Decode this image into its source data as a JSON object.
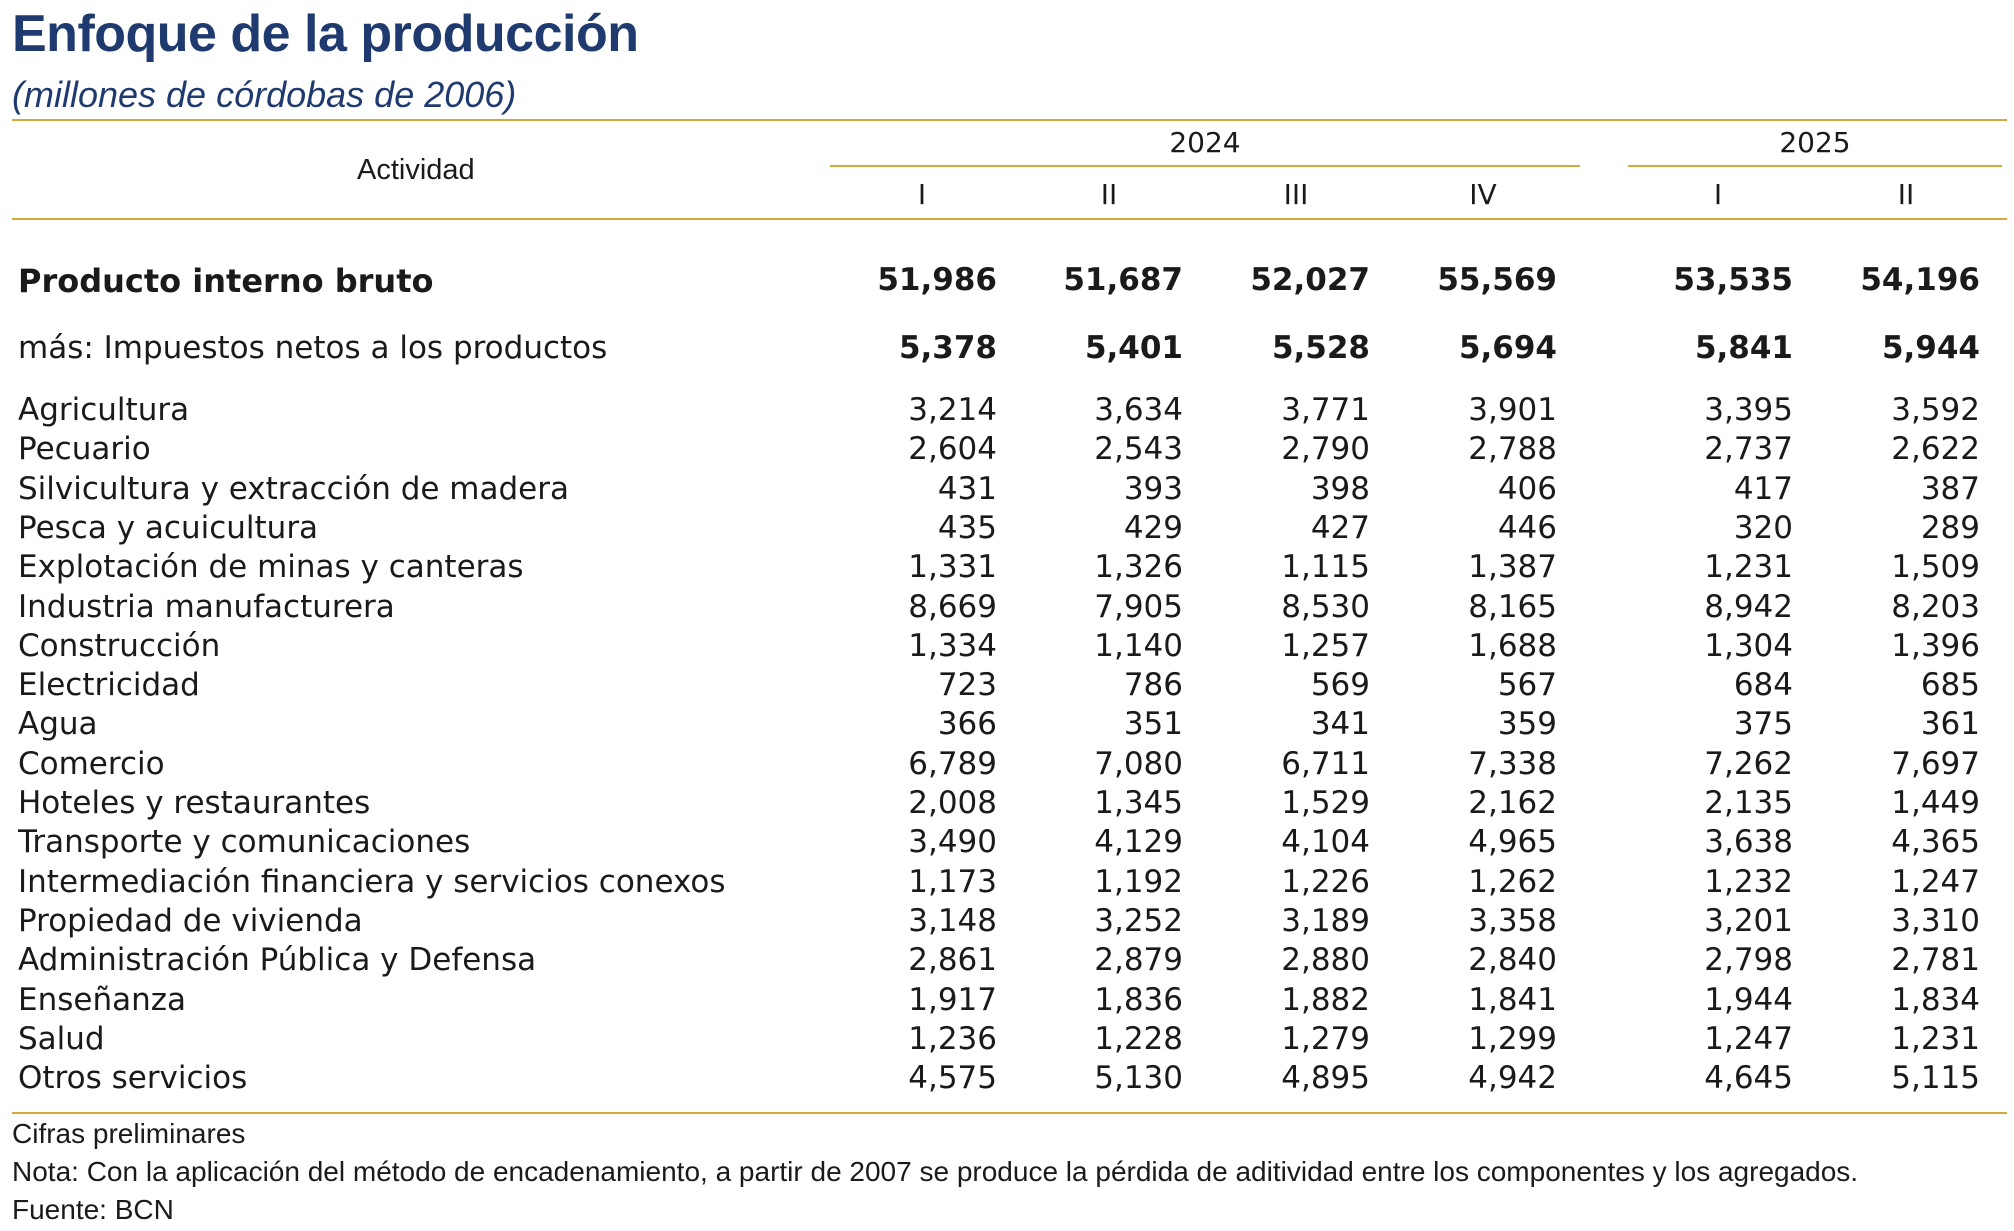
{
  "title": "Enfoque de la producción",
  "subtitle": "(millones de córdobas de 2006)",
  "header": {
    "activity_label": "Actividad",
    "years": [
      "2024",
      "2025"
    ],
    "quarters": [
      "I",
      "II",
      "III",
      "IV",
      "I",
      "II"
    ]
  },
  "rows": [
    {
      "label": "Producto interno bruto",
      "values": [
        "51,986",
        "51,687",
        "52,027",
        "55,569",
        "53,535",
        "54,196"
      ]
    },
    {
      "label": "más: Impuestos netos a los productos",
      "values": [
        "5,378",
        "5,401",
        "5,528",
        "5,694",
        "5,841",
        "5,944"
      ]
    },
    {
      "label": "Agricultura",
      "values": [
        "3,214",
        "3,634",
        "3,771",
        "3,901",
        "3,395",
        "3,592"
      ]
    },
    {
      "label": "Pecuario",
      "values": [
        "2,604",
        "2,543",
        "2,790",
        "2,788",
        "2,737",
        "2,622"
      ]
    },
    {
      "label": "Silvicultura y extracción de madera",
      "values": [
        "431",
        "393",
        "398",
        "406",
        "417",
        "387"
      ]
    },
    {
      "label": "Pesca y acuicultura",
      "values": [
        "435",
        "429",
        "427",
        "446",
        "320",
        "289"
      ]
    },
    {
      "label": "Explotación de minas y canteras",
      "values": [
        "1,331",
        "1,326",
        "1,115",
        "1,387",
        "1,231",
        "1,509"
      ]
    },
    {
      "label": "Industria manufacturera",
      "values": [
        "8,669",
        "7,905",
        "8,530",
        "8,165",
        "8,942",
        "8,203"
      ]
    },
    {
      "label": "Construcción",
      "values": [
        "1,334",
        "1,140",
        "1,257",
        "1,688",
        "1,304",
        "1,396"
      ]
    },
    {
      "label": "Electricidad",
      "values": [
        "723",
        "786",
        "569",
        "567",
        "684",
        "685"
      ]
    },
    {
      "label": "Agua",
      "values": [
        "366",
        "351",
        "341",
        "359",
        "375",
        "361"
      ]
    },
    {
      "label": "Comercio",
      "values": [
        "6,789",
        "7,080",
        "6,711",
        "7,338",
        "7,262",
        "7,697"
      ]
    },
    {
      "label": "Hoteles y restaurantes",
      "values": [
        "2,008",
        "1,345",
        "1,529",
        "2,162",
        "2,135",
        "1,449"
      ]
    },
    {
      "label": "Transporte y comunicaciones",
      "values": [
        "3,490",
        "4,129",
        "4,104",
        "4,965",
        "3,638",
        "4,365"
      ]
    },
    {
      "label": "Intermediación financiera y servicios conexos",
      "values": [
        "1,173",
        "1,192",
        "1,226",
        "1,262",
        "1,232",
        "1,247"
      ]
    },
    {
      "label": "Propiedad de vivienda",
      "values": [
        "3,148",
        "3,252",
        "3,189",
        "3,358",
        "3,201",
        "3,310"
      ]
    },
    {
      "label": "Administración Pública y Defensa",
      "values": [
        "2,861",
        "2,879",
        "2,880",
        "2,840",
        "2,798",
        "2,781"
      ]
    },
    {
      "label": "Enseñanza",
      "values": [
        "1,917",
        "1,836",
        "1,882",
        "1,841",
        "1,944",
        "1,834"
      ]
    },
    {
      "label": "Salud",
      "values": [
        "1,236",
        "1,228",
        "1,279",
        "1,299",
        "1,247",
        "1,231"
      ]
    },
    {
      "label": "Otros servicios",
      "values": [
        "4,575",
        "5,130",
        "4,895",
        "4,942",
        "4,645",
        "5,115"
      ]
    }
  ],
  "footer": {
    "note1": "Cifras preliminares",
    "note2": "Nota: Con la aplicación del método de encadenamiento, a partir de 2007 se produce la pérdida de aditividad entre los componentes y los agregados.",
    "source": "Fuente: BCN"
  },
  "colors": {
    "title": "#1f3a6e",
    "rule": "#d4a93c"
  }
}
